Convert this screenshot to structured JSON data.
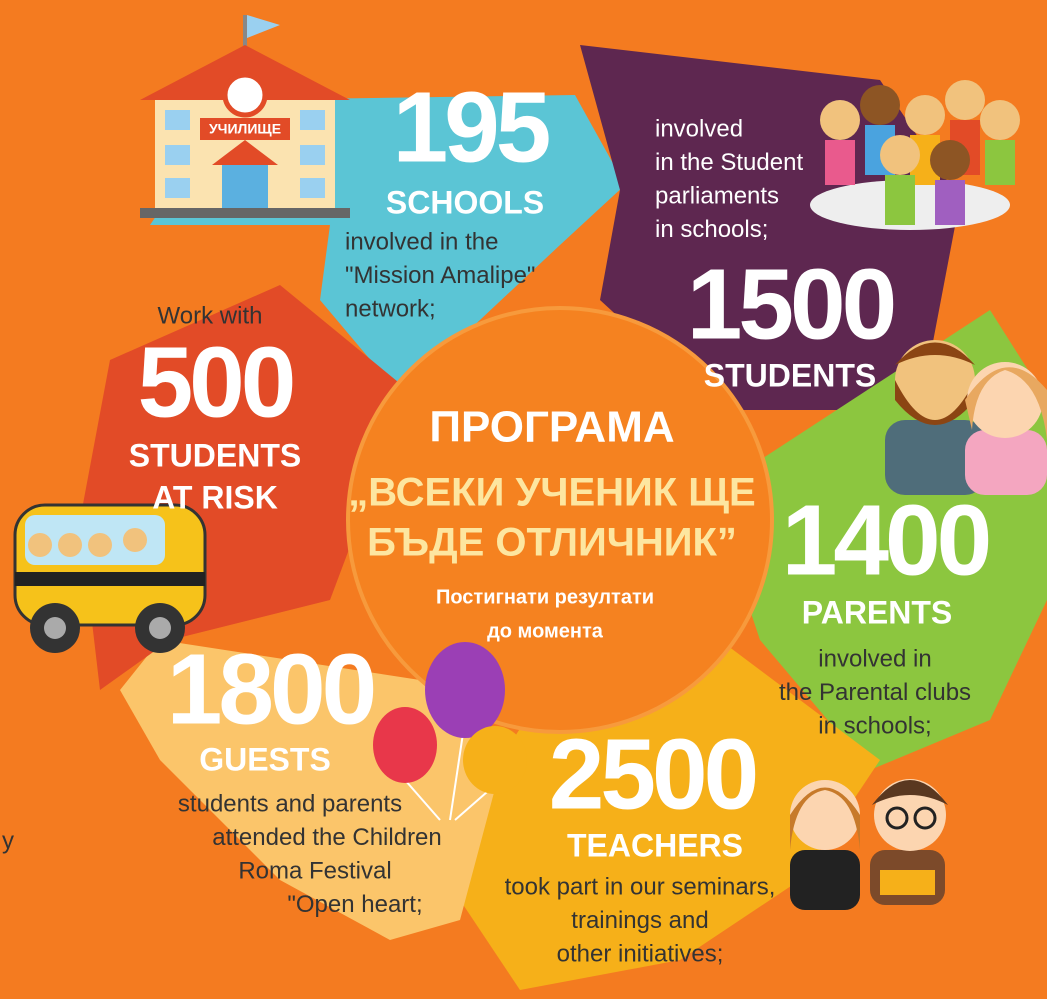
{
  "center": {
    "title": "ПРОГРАМА",
    "subtitle_lines": [
      "„ВСЕКИ УЧЕНИК ЩЕ",
      "БЪДЕ ОТЛИЧНИК”"
    ],
    "note_lines": [
      "Постигнати резултати",
      "до момента"
    ]
  },
  "school_sign": "УЧИЛИЩЕ",
  "edge_fragment": "y",
  "segments": [
    {
      "number": 195,
      "label_lines": [
        "SCHOOLS"
      ],
      "pre_lines": [],
      "text_lines": [
        "involved in the",
        "\"Mission Amalipe\"",
        "network;"
      ]
    },
    {
      "number": 1500,
      "label_lines": [
        "STUDENTS"
      ],
      "pre_lines": [
        "involved",
        "in the Student",
        "parliaments",
        "in schools;"
      ],
      "text_lines": []
    },
    {
      "number": 1400,
      "label_lines": [
        "PARENTS"
      ],
      "pre_lines": [],
      "text_lines": [
        "involved in",
        "the Parental clubs",
        "in schools;"
      ]
    },
    {
      "number": 2500,
      "label_lines": [
        "TEACHERS"
      ],
      "pre_lines": [],
      "text_lines": [
        "took part in our seminars,",
        "trainings and",
        "other initiatives;"
      ]
    },
    {
      "number": 1800,
      "label_lines": [
        "GUESTS"
      ],
      "pre_lines": [],
      "text_lines": [
        "students and parents",
        "attended the Children",
        "Roma Festival",
        "\"Open heart;"
      ]
    },
    {
      "number": 500,
      "label_lines": [
        "STUDENTS",
        "AT RISK"
      ],
      "pre_lines": [
        "Work with"
      ],
      "text_lines": []
    }
  ]
}
